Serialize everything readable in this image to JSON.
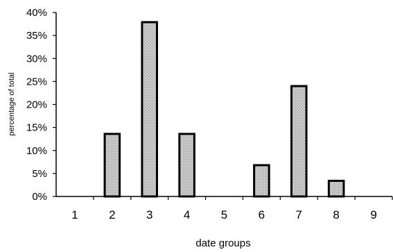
{
  "chart_data": {
    "type": "bar",
    "categories": [
      "1",
      "2",
      "3",
      "4",
      "5",
      "6",
      "7",
      "8",
      "9"
    ],
    "values": [
      0,
      13.6,
      37.9,
      13.6,
      0,
      6.8,
      24.0,
      3.4,
      0
    ],
    "xlabel": "date groups",
    "ylabel": "percentage of total",
    "ylim": [
      0,
      40
    ],
    "yticks": [
      "0%",
      "5%",
      "10%",
      "15%",
      "20%",
      "25%",
      "30%",
      "35%",
      "40%"
    ],
    "grid": false,
    "legend": "none",
    "bar_fill": "#bdbdbd",
    "bar_stroke": "#000000"
  }
}
